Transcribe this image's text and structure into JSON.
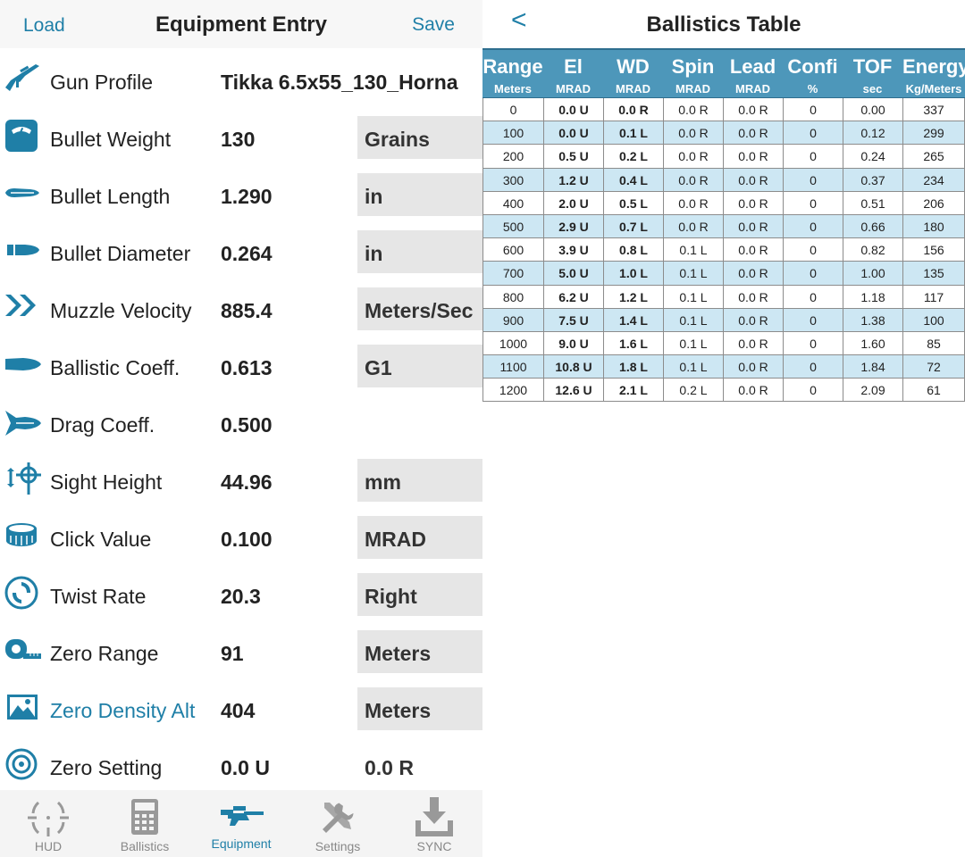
{
  "equipment": {
    "header": {
      "load": "Load",
      "title": "Equipment Entry",
      "save": "Save"
    },
    "rows": [
      {
        "key": "gun",
        "icon": "rifle-icon",
        "label": "Gun Profile",
        "value": "Tikka 6.5x55_130_Horna",
        "unit": ""
      },
      {
        "key": "bw",
        "icon": "scale-icon",
        "label": "Bullet Weight",
        "value": "130",
        "unit": "Grains"
      },
      {
        "key": "bl",
        "icon": "bullet-length-icon",
        "label": "Bullet Length",
        "value": "1.290",
        "unit": "in"
      },
      {
        "key": "bd",
        "icon": "bullet-diameter-icon",
        "label": "Bullet Diameter",
        "value": "0.264",
        "unit": "in"
      },
      {
        "key": "mv",
        "icon": "double-chevron-icon",
        "label": "Muzzle Velocity",
        "value": "885.4",
        "unit": "Meters/Sec"
      },
      {
        "key": "bc",
        "icon": "bullet-icon",
        "label": "Ballistic Coeff.",
        "value": "0.613",
        "unit": "G1"
      },
      {
        "key": "dc",
        "icon": "drag-bullet-icon",
        "label": "Drag Coeff.",
        "value": "0.500",
        "unit": ""
      },
      {
        "key": "sh",
        "icon": "sight-height-icon",
        "label": "Sight Height",
        "value": "44.96",
        "unit": "mm"
      },
      {
        "key": "cv",
        "icon": "click-dial-icon",
        "label": "Click Value",
        "value": "0.100",
        "unit": "MRAD"
      },
      {
        "key": "tr",
        "icon": "twist-rate-icon",
        "label": "Twist Rate",
        "value": "20.3",
        "unit": "Right"
      },
      {
        "key": "zr",
        "icon": "tape-measure-icon",
        "label": "Zero Range",
        "value": "91",
        "unit": "Meters"
      },
      {
        "key": "zd",
        "icon": "landscape-icon",
        "label": "Zero Density Alt",
        "value": "404",
        "unit": "Meters"
      },
      {
        "key": "zs",
        "icon": "target-icon",
        "label": "Zero Setting",
        "value": "0.0 U",
        "unit": "0.0 R"
      }
    ],
    "tabs": [
      {
        "label": "HUD",
        "icon": "hud-reticle-icon"
      },
      {
        "label": "Ballistics",
        "icon": "calculator-icon"
      },
      {
        "label": "Equipment",
        "icon": "rifle-icon"
      },
      {
        "label": "Settings",
        "icon": "wrench-screwdriver-icon"
      },
      {
        "label": "SYNC",
        "icon": "download-tray-icon"
      }
    ],
    "colors": {
      "accent": "#1f7fa7"
    }
  },
  "ballistics": {
    "back": "<",
    "title": "Ballistics Table",
    "columns": [
      "Range",
      "El",
      "WD",
      "Spin",
      "Lead",
      "Confi",
      "TOF",
      "Energy"
    ],
    "units": [
      "Meters",
      "MRAD",
      "MRAD",
      "MRAD",
      "MRAD",
      "%",
      "sec",
      "Kg/Meters"
    ],
    "rows": [
      [
        "0",
        "0.0 U",
        "0.0 R",
        "0.0 R",
        "0.0 R",
        "0",
        "0.00",
        "337"
      ],
      [
        "100",
        "0.0 U",
        "0.1 L",
        "0.0 R",
        "0.0 R",
        "0",
        "0.12",
        "299"
      ],
      [
        "200",
        "0.5 U",
        "0.2 L",
        "0.0 R",
        "0.0 R",
        "0",
        "0.24",
        "265"
      ],
      [
        "300",
        "1.2 U",
        "0.4 L",
        "0.0 R",
        "0.0 R",
        "0",
        "0.37",
        "234"
      ],
      [
        "400",
        "2.0 U",
        "0.5 L",
        "0.0 R",
        "0.0 R",
        "0",
        "0.51",
        "206"
      ],
      [
        "500",
        "2.9 U",
        "0.7 L",
        "0.0 R",
        "0.0 R",
        "0",
        "0.66",
        "180"
      ],
      [
        "600",
        "3.9 U",
        "0.8 L",
        "0.1 L",
        "0.0 R",
        "0",
        "0.82",
        "156"
      ],
      [
        "700",
        "5.0 U",
        "1.0 L",
        "0.1 L",
        "0.0 R",
        "0",
        "1.00",
        "135"
      ],
      [
        "800",
        "6.2 U",
        "1.2 L",
        "0.1 L",
        "0.0 R",
        "0",
        "1.18",
        "117"
      ],
      [
        "900",
        "7.5 U",
        "1.4 L",
        "0.1 L",
        "0.0 R",
        "0",
        "1.38",
        "100"
      ],
      [
        "1000",
        "9.0 U",
        "1.6 L",
        "0.1 L",
        "0.0 R",
        "0",
        "1.60",
        "85"
      ],
      [
        "1100",
        "10.8 U",
        "1.8 L",
        "0.1 L",
        "0.0 R",
        "0",
        "1.84",
        "72"
      ],
      [
        "1200",
        "12.6 U",
        "2.1 L",
        "0.2 L",
        "0.0 R",
        "0",
        "2.09",
        "61"
      ]
    ]
  }
}
